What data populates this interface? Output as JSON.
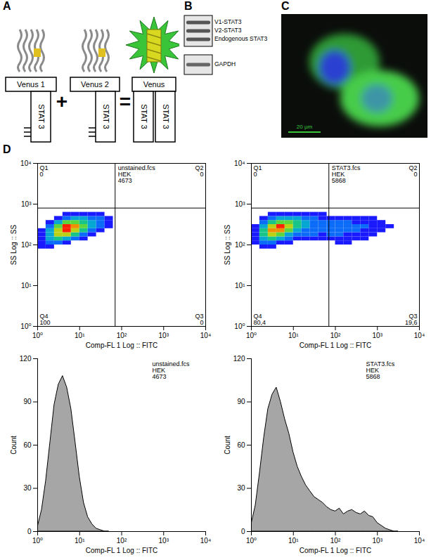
{
  "figure": {
    "panels": {
      "A": {
        "letter": "A",
        "left": {
          "domain": "Venus 1",
          "partner": "STAT 3"
        },
        "operator1": "+",
        "middle": {
          "domain": "Venus 2",
          "partner": "STAT 3"
        },
        "operator2": "=",
        "right": {
          "domain": "Venus",
          "partners": [
            "STAT 3",
            "STAT 3"
          ]
        }
      },
      "B": {
        "letter": "B",
        "bands": [
          "V1-STAT3",
          "V2-STAT3",
          "Endogenous STAT3"
        ],
        "loading": "GAPDH"
      },
      "C": {
        "letter": "C",
        "scale_bar": "20 µm"
      },
      "D": {
        "letter": "D"
      }
    }
  },
  "chart_data": [
    {
      "type": "density",
      "xlabel": "Comp-FL 1 Log :: FITC",
      "ylabel": "SS Log :: SS",
      "log": true,
      "xlim": [
        1,
        10000
      ],
      "ylim": [
        1,
        10000
      ],
      "xticks": [
        {
          "value": 1,
          "label": "10⁰"
        },
        {
          "value": 10,
          "label": "10¹"
        },
        {
          "value": 100,
          "label": "10²"
        },
        {
          "value": 1000,
          "label": "10³"
        },
        {
          "value": 10000,
          "label": "10⁴"
        }
      ],
      "yticks": [
        {
          "value": 1,
          "label": "10⁰"
        },
        {
          "value": 10,
          "label": "10¹"
        },
        {
          "value": 100,
          "label": "10²"
        },
        {
          "value": 1000,
          "label": "10³"
        },
        {
          "value": 10000,
          "label": "10⁴"
        }
      ],
      "annotations": [
        "unstained.fcs",
        "HEK",
        "4673"
      ],
      "gates": {
        "x": 70,
        "y": 800
      },
      "quadrants": [
        {
          "name": "Q1",
          "value": 0
        },
        {
          "name": "Q2",
          "value": 0
        },
        {
          "name": "Q4",
          "value": 100
        },
        {
          "name": "Q3",
          "value": 0
        }
      ],
      "x_bins": [
        1,
        1.58,
        2.51,
        3.98,
        6.31,
        10,
        15.8,
        25.1,
        39.8,
        63.1,
        100,
        158,
        251,
        398,
        631,
        1000,
        1585,
        2512,
        3981
      ],
      "y_bins": [
        63.1,
        79.4,
        100,
        126,
        158,
        200,
        251,
        316,
        398,
        501,
        631
      ],
      "density": [
        [
          0,
          0,
          0,
          0,
          0,
          0,
          0,
          0,
          0,
          0,
          0,
          0,
          0,
          0,
          0,
          0,
          0,
          0
        ],
        [
          1,
          1,
          0,
          0,
          0,
          0,
          0,
          0,
          0,
          0,
          0,
          0,
          0,
          0,
          0,
          0,
          0,
          0
        ],
        [
          1,
          2,
          2,
          1,
          0,
          0,
          0,
          0,
          0,
          0,
          0,
          0,
          0,
          0,
          0,
          0,
          0,
          0
        ],
        [
          1,
          3,
          4,
          3,
          2,
          1,
          0,
          0,
          0,
          0,
          0,
          0,
          0,
          0,
          0,
          0,
          0,
          0
        ],
        [
          1,
          3,
          6,
          6,
          4,
          2,
          1,
          0,
          0,
          0,
          0,
          0,
          0,
          0,
          0,
          0,
          0,
          0
        ],
        [
          1,
          3,
          6,
          8,
          6,
          4,
          2,
          1,
          0,
          0,
          0,
          0,
          0,
          0,
          0,
          0,
          0,
          0
        ],
        [
          0,
          2,
          5,
          8,
          7,
          5,
          3,
          2,
          1,
          0,
          0,
          0,
          0,
          0,
          0,
          0,
          0,
          0
        ],
        [
          0,
          1,
          3,
          5,
          5,
          4,
          3,
          2,
          1,
          0,
          0,
          0,
          0,
          0,
          0,
          0,
          0,
          0
        ],
        [
          0,
          0,
          1,
          2,
          3,
          3,
          2,
          2,
          1,
          0,
          0,
          0,
          0,
          0,
          0,
          0,
          0,
          0
        ],
        [
          0,
          0,
          0,
          1,
          1,
          1,
          1,
          1,
          0,
          0,
          0,
          0,
          0,
          0,
          0,
          0,
          0,
          0
        ]
      ]
    },
    {
      "type": "density",
      "xlabel": "Comp-FL 1 Log :: FITC",
      "ylabel": "SS Log :: SS",
      "log": true,
      "xlim": [
        1,
        10000
      ],
      "ylim": [
        1,
        10000
      ],
      "xticks": [
        {
          "value": 1,
          "label": "10⁰"
        },
        {
          "value": 10,
          "label": "10¹"
        },
        {
          "value": 100,
          "label": "10²"
        },
        {
          "value": 1000,
          "label": "10³"
        },
        {
          "value": 10000,
          "label": "10⁴"
        }
      ],
      "yticks": [
        {
          "value": 1,
          "label": "10⁰"
        },
        {
          "value": 10,
          "label": "10¹"
        },
        {
          "value": 100,
          "label": "10²"
        },
        {
          "value": 1000,
          "label": "10³"
        },
        {
          "value": 10000,
          "label": "10⁴"
        }
      ],
      "annotations": [
        "STAT3.fcs",
        "HEK",
        "5868"
      ],
      "gates": {
        "x": 70,
        "y": 800
      },
      "quadrants": [
        {
          "name": "Q1",
          "value": 0
        },
        {
          "name": "Q2",
          "value": 0
        },
        {
          "name": "Q4",
          "value": 80.4,
          "label": "80,4"
        },
        {
          "name": "Q3",
          "value": 19.6,
          "label": "19,6"
        }
      ],
      "x_bins": [
        1,
        1.58,
        2.51,
        3.98,
        6.31,
        10,
        15.8,
        25.1,
        39.8,
        63.1,
        100,
        158,
        251,
        398,
        631,
        1000,
        1585,
        2512,
        3981
      ],
      "y_bins": [
        63.1,
        79.4,
        100,
        126,
        158,
        200,
        251,
        316,
        398,
        501,
        631
      ],
      "density": [
        [
          0,
          0,
          0,
          0,
          0,
          0,
          0,
          0,
          0,
          0,
          0,
          0,
          0,
          0,
          0,
          0,
          0,
          0
        ],
        [
          0,
          1,
          1,
          0,
          0,
          0,
          0,
          0,
          0,
          0,
          0,
          0,
          0,
          0,
          0,
          0,
          0,
          0
        ],
        [
          1,
          2,
          2,
          1,
          1,
          0,
          0,
          0,
          0,
          0,
          1,
          1,
          0,
          0,
          0,
          0,
          0,
          0
        ],
        [
          1,
          3,
          4,
          3,
          2,
          1,
          1,
          1,
          1,
          1,
          1,
          1,
          1,
          1,
          0,
          0,
          0,
          0
        ],
        [
          1,
          4,
          6,
          5,
          3,
          2,
          2,
          2,
          1,
          2,
          2,
          1,
          1,
          1,
          1,
          0,
          0,
          0
        ],
        [
          1,
          4,
          7,
          7,
          5,
          3,
          2,
          2,
          2,
          2,
          2,
          2,
          2,
          1,
          1,
          1,
          0,
          0
        ],
        [
          1,
          3,
          6,
          8,
          6,
          4,
          3,
          2,
          2,
          2,
          2,
          2,
          2,
          2,
          1,
          1,
          1,
          0
        ],
        [
          0,
          2,
          4,
          5,
          5,
          4,
          3,
          2,
          2,
          2,
          2,
          2,
          1,
          1,
          1,
          1,
          0,
          0
        ],
        [
          0,
          1,
          2,
          3,
          3,
          3,
          2,
          2,
          1,
          1,
          1,
          1,
          1,
          1,
          1,
          0,
          0,
          0
        ],
        [
          0,
          0,
          1,
          1,
          1,
          1,
          1,
          1,
          1,
          0,
          0,
          0,
          0,
          0,
          0,
          0,
          0,
          0
        ]
      ]
    },
    {
      "type": "area",
      "xlabel": "Comp-FL 1 Log :: FITC",
      "ylabel": "Count",
      "log": "x",
      "color": "#a6a6a6",
      "xlim": [
        1,
        10000
      ],
      "ylim": [
        0,
        120
      ],
      "xticks": [
        {
          "value": 1,
          "label": "10⁰"
        },
        {
          "value": 10,
          "label": "10¹"
        },
        {
          "value": 100,
          "label": "10²"
        },
        {
          "value": 1000,
          "label": "10³"
        },
        {
          "value": 10000,
          "label": "10⁴"
        }
      ],
      "yticks": [
        0,
        30,
        60,
        90,
        120
      ],
      "annotations": [
        "unstained.fcs",
        "HEK",
        "4673"
      ],
      "x": [
        1,
        1.26,
        1.58,
        2,
        2.51,
        3.16,
        3.98,
        5.01,
        6.31,
        7.94,
        10,
        12.6,
        15.8,
        20,
        25.1,
        31.6,
        39.8,
        50.1
      ],
      "values": [
        3,
        15,
        35,
        62,
        88,
        102,
        108,
        100,
        85,
        62,
        38,
        20,
        10,
        5,
        2,
        1,
        0,
        0
      ]
    },
    {
      "type": "area",
      "xlabel": "Comp-FL 1 Log :: FITC",
      "ylabel": "Count",
      "log": "x",
      "color": "#a6a6a6",
      "xlim": [
        1,
        10000
      ],
      "ylim": [
        0,
        120
      ],
      "xticks": [
        {
          "value": 1,
          "label": "10⁰"
        },
        {
          "value": 10,
          "label": "10¹"
        },
        {
          "value": 100,
          "label": "10²"
        },
        {
          "value": 1000,
          "label": "10³"
        },
        {
          "value": 10000,
          "label": "10⁴"
        }
      ],
      "yticks": [
        0,
        30,
        60,
        90,
        120
      ],
      "annotations": [
        "STAT3.fcs",
        "HEK",
        "5868"
      ],
      "x": [
        1,
        1.26,
        1.58,
        2,
        2.51,
        3.16,
        3.98,
        5.01,
        6.31,
        7.94,
        10,
        12.6,
        15.8,
        20,
        25.1,
        31.6,
        39.8,
        50.1,
        63.1,
        79.4,
        100,
        126,
        158,
        200,
        251,
        316,
        398,
        501,
        631,
        794,
        1000,
        1259,
        1585,
        1995,
        2512,
        3162
      ],
      "values": [
        5,
        18,
        40,
        65,
        85,
        95,
        100,
        90,
        78,
        68,
        55,
        45,
        38,
        32,
        28,
        24,
        22,
        20,
        17,
        15,
        14,
        16,
        12,
        14,
        15,
        13,
        12,
        14,
        11,
        10,
        6,
        4,
        2,
        1,
        0,
        0
      ]
    }
  ]
}
